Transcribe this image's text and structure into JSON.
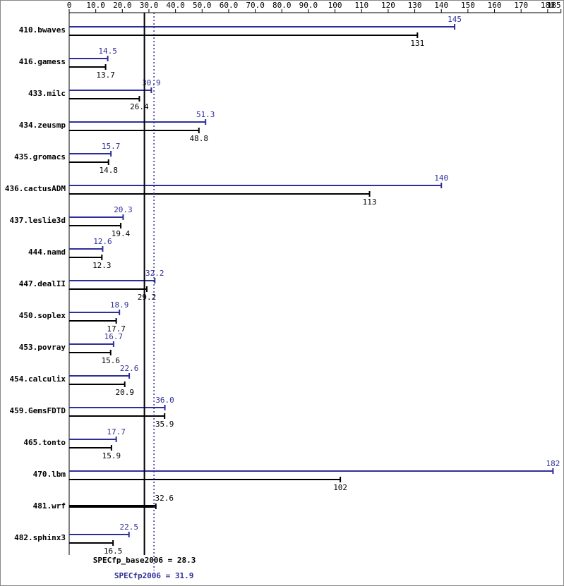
{
  "chart_data": {
    "type": "bar",
    "categories": [
      "410.bwaves",
      "416.gamess",
      "433.milc",
      "434.zeusmp",
      "435.gromacs",
      "436.cactusADM",
      "437.leslie3d",
      "444.namd",
      "447.dealII",
      "450.soplex",
      "453.povray",
      "454.calculix",
      "459.GemsFDTD",
      "465.tonto",
      "470.lbm",
      "481.wrf",
      "482.sphinx3"
    ],
    "series": [
      {
        "color": "#2e2e9a",
        "values": [
          145,
          14.5,
          30.9,
          51.3,
          15.7,
          140,
          20.3,
          12.6,
          32.2,
          18.9,
          16.7,
          22.6,
          36.0,
          17.7,
          182,
          null,
          22.5
        ],
        "value_labels": [
          "145",
          "14.5",
          "30.9",
          "51.3",
          "15.7",
          "140",
          "20.3",
          "12.6",
          "32.2",
          "18.9",
          "16.7",
          "22.6",
          "36.0",
          "17.7",
          "182",
          null,
          "22.5"
        ]
      },
      {
        "color": "#000000",
        "values": [
          131,
          13.7,
          26.4,
          48.8,
          14.8,
          113,
          19.4,
          12.3,
          29.2,
          17.7,
          15.6,
          20.9,
          35.9,
          15.9,
          102,
          32.6,
          16.5
        ],
        "value_labels": [
          "131",
          "13.7",
          "26.4",
          "48.8",
          "14.8",
          "113",
          "19.4",
          "12.3",
          "29.2",
          "17.7",
          "15.6",
          "20.9",
          "35.9",
          "15.9",
          "102",
          "32.6",
          "16.5"
        ]
      }
    ],
    "xlim": [
      0,
      185
    ],
    "xticks": [
      0,
      {
        "value": 10,
        "label": "10.0"
      },
      {
        "value": 20,
        "label": "20.0"
      },
      {
        "value": 30,
        "label": "30.0"
      },
      {
        "value": 40,
        "label": "40.0"
      },
      {
        "value": 50,
        "label": "50.0"
      },
      {
        "value": 60,
        "label": "60.0"
      },
      {
        "value": 70,
        "label": "70.0"
      },
      {
        "value": 80,
        "label": "80.0"
      },
      {
        "value": 90,
        "label": "90.0"
      },
      100,
      110,
      120,
      130,
      140,
      150,
      160,
      170,
      180,
      185
    ],
    "reference_lines": [
      {
        "label": "SPECfp_base2006 = 28.3",
        "value": 28.3,
        "color": "#000000",
        "dashed": false
      },
      {
        "label": "SPECfp2006 = 31.9",
        "value": 31.9,
        "color": "#2e2e9a",
        "dashed": true
      }
    ]
  }
}
